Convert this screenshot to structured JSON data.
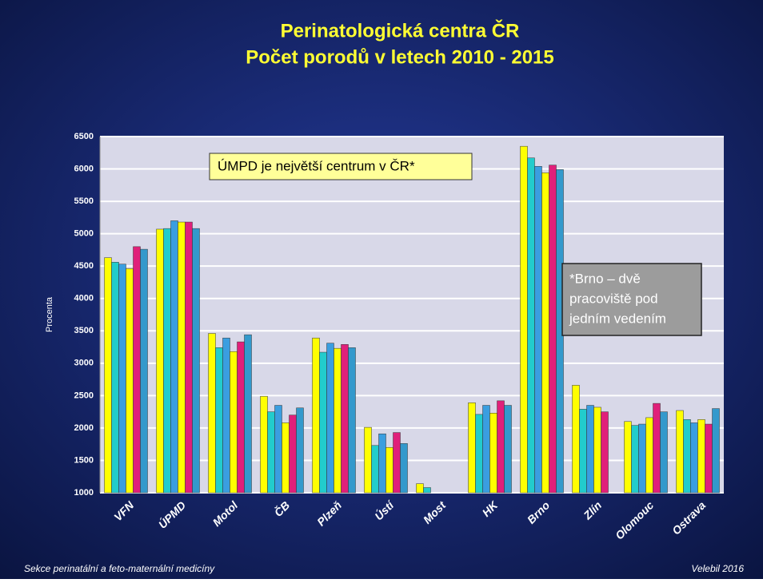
{
  "chart_data": {
    "type": "bar",
    "title": [
      "Perinatologická centra ČR",
      "Počet porodů v letech 2010 - 2015"
    ],
    "y_label": "Procenta",
    "categories": [
      "VFN",
      "ÚPMD",
      "Motol",
      "ČB",
      "Plzeň",
      "Ústí",
      "Most",
      "HK",
      "Brno",
      "Zlín",
      "Olomouc",
      "Ostrava"
    ],
    "series": [
      {
        "color": "#ffff00",
        "values": [
          4630,
          5070,
          3460,
          2490,
          3390,
          2010,
          1140,
          2390,
          6350,
          2660,
          2100,
          2270
        ]
      },
      {
        "color": "#22cccc",
        "values": [
          4560,
          5080,
          3240,
          2250,
          3170,
          1730,
          1080,
          2210,
          6170,
          2290,
          2040,
          2130
        ]
      },
      {
        "color": "#3a9ee0",
        "values": [
          4530,
          5200,
          3390,
          2350,
          3310,
          1910,
          null,
          2350,
          6040,
          2350,
          2060,
          2080
        ]
      },
      {
        "color": "#ffff00",
        "values": [
          4460,
          5180,
          3180,
          2080,
          3230,
          1700,
          null,
          2230,
          5940,
          2320,
          2160,
          2130
        ]
      },
      {
        "color": "#e0207a",
        "values": [
          4800,
          5180,
          3330,
          2200,
          3290,
          1930,
          null,
          2420,
          6060,
          2250,
          2380,
          2060
        ]
      },
      {
        "color": "#3399cc",
        "values": [
          4760,
          5080,
          3440,
          2310,
          3240,
          1760,
          null,
          2350,
          5990,
          null,
          2250,
          2300
        ]
      }
    ],
    "ylim": [
      1000,
      6500
    ],
    "yticks": [
      1000,
      1500,
      2000,
      2500,
      3000,
      3500,
      4000,
      4500,
      5000,
      5500,
      6000,
      6500
    ],
    "grid": true,
    "annotations": [
      {
        "text": [
          "ÚMPD je největší centrum v ČR*"
        ]
      },
      {
        "text": [
          "*Brno – dvě",
          "pracoviště pod",
          "jedním vedením"
        ]
      }
    ],
    "footer_left": "Sekce perinatální a feto-maternální medicíny",
    "footer_right": "Velebil 2016"
  }
}
